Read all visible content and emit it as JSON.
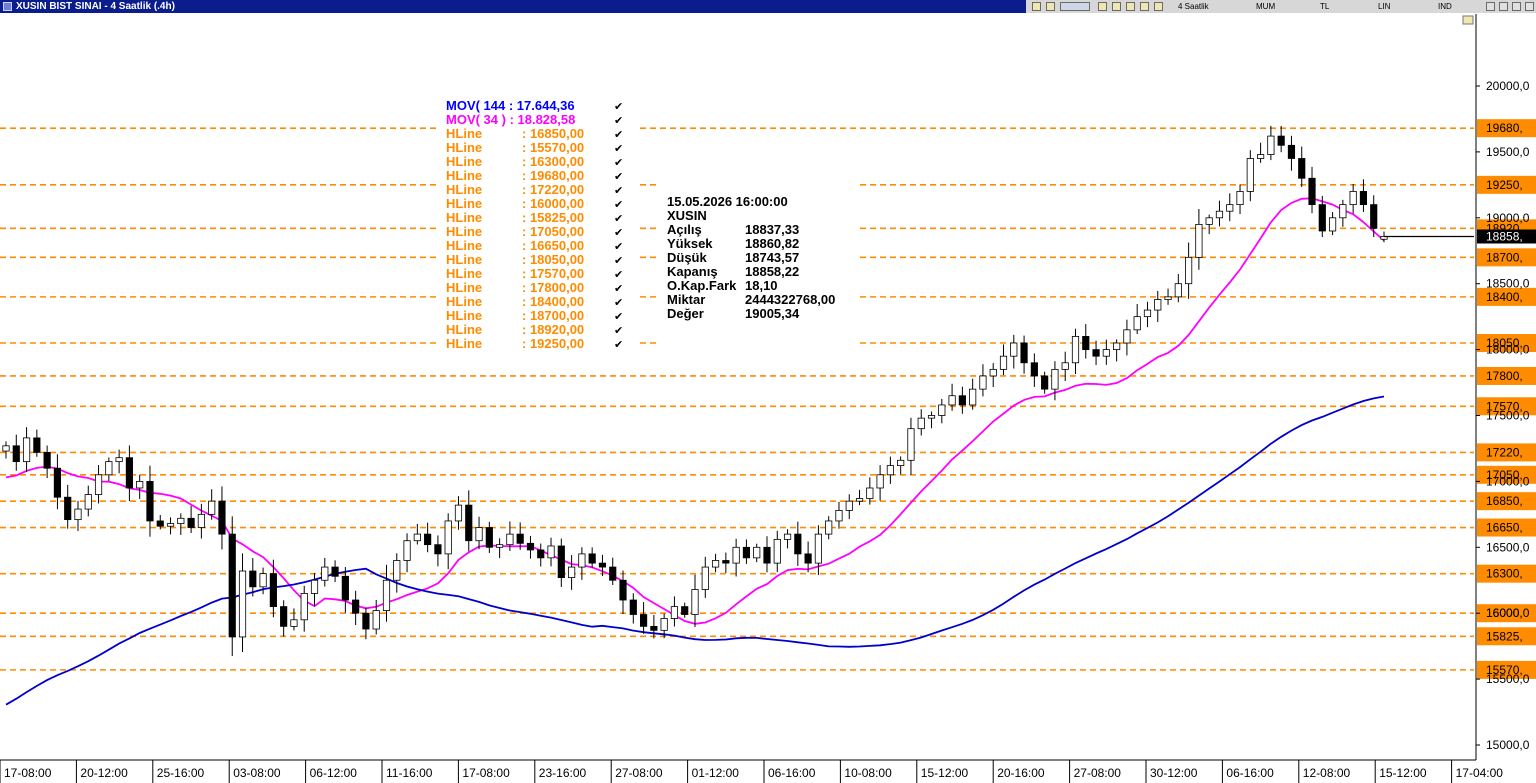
{
  "window": {
    "title": "XUSIN BIST SINAI - 4 Saatlik (.4h)"
  },
  "toolbar": {
    "period_label": "4 Saatlik",
    "mode_items": [
      "MUM",
      "TL",
      "LIN",
      "IND"
    ]
  },
  "legend": {
    "indicators": [
      {
        "name": "MOV( 144 : 17.644,36",
        "color": "#0000ff"
      },
      {
        "name": "MOV( 34 ) : 18.828,58",
        "color": "#ff00ff"
      }
    ],
    "hline_entries": [
      {
        "name": "HLine",
        "value": ": 16850,00"
      },
      {
        "name": "HLine",
        "value": ": 15570,00"
      },
      {
        "name": "HLine",
        "value": ": 16300,00"
      },
      {
        "name": "HLine",
        "value": ": 19680,00"
      },
      {
        "name": "HLine",
        "value": ": 17220,00"
      },
      {
        "name": "HLine",
        "value": ": 16000,00"
      },
      {
        "name": "HLine",
        "value": ": 15825,00"
      },
      {
        "name": "HLine",
        "value": ": 17050,00"
      },
      {
        "name": "HLine",
        "value": ": 16650,00"
      },
      {
        "name": "HLine",
        "value": ": 18050,00"
      },
      {
        "name": "HLine",
        "value": ": 17570,00"
      },
      {
        "name": "HLine",
        "value": ": 17800,00"
      },
      {
        "name": "HLine",
        "value": ": 18400,00"
      },
      {
        "name": "HLine",
        "value": ": 18700,00"
      },
      {
        "name": "HLine",
        "value": ": 18920,00"
      },
      {
        "name": "HLine",
        "value": ": 19250,00"
      }
    ],
    "check_mark": "✔"
  },
  "info_panel": {
    "datetime": "15.05.2026  16:00:00",
    "symbol": "XUSIN",
    "rows": [
      {
        "label": "Açılış",
        "value": "18837,33"
      },
      {
        "label": "Yüksek",
        "value": "18860,82"
      },
      {
        "label": "Düşük",
        "value": "18743,57"
      },
      {
        "label": "Kapanış",
        "value": "18858,22"
      },
      {
        "label": "O.Kap.Fark",
        "value": "18,10"
      },
      {
        "label": "Miktar",
        "value": "2444322768,00"
      },
      {
        "label": "Değer",
        "value": "19005,34"
      }
    ]
  },
  "chart_data": {
    "type": "candlestick",
    "title": "XUSIN BIST SINAI - 4 Saatlik (.4h)",
    "y_axis": {
      "range": [
        14850,
        20250
      ],
      "tick_labels": [
        "20000,0",
        "19500,0",
        "19000,0",
        "18500,0",
        "18000,0",
        "17500,0",
        "17000,0",
        "16500,0",
        "16000,0",
        "15500,0",
        "15000,0"
      ],
      "tick_values": [
        20000,
        19500,
        19000,
        18500,
        18000,
        17500,
        17000,
        16500,
        16000,
        15500,
        15000
      ]
    },
    "x_axis": {
      "tick_labels": [
        "17-08:00",
        "20-12:00",
        "25-16:00",
        "03-08:00",
        "06-12:00",
        "11-16:00",
        "17-08:00",
        "23-16:00",
        "27-08:00",
        "01-12:00",
        "06-16:00",
        "10-08:00",
        "15-12:00",
        "20-16:00",
        "27-08:00",
        "30-12:00",
        "06-16:00",
        "12-08:00",
        "15-12:00",
        "17-04:00"
      ]
    },
    "hlines": [
      {
        "value": 19680,
        "label": "19680,"
      },
      {
        "value": 19250,
        "label": "19250,"
      },
      {
        "value": 18920,
        "label": "18920,"
      },
      {
        "value": 18700,
        "label": "18700,"
      },
      {
        "value": 18400,
        "label": "18400,"
      },
      {
        "value": 18050,
        "label": "18050,"
      },
      {
        "value": 17800,
        "label": "17800,"
      },
      {
        "value": 17570,
        "label": "17570,"
      },
      {
        "value": 17220,
        "label": "17220,"
      },
      {
        "value": 17050,
        "label": "17050,"
      },
      {
        "value": 16850,
        "label": "16850,"
      },
      {
        "value": 16650,
        "label": "16650,"
      },
      {
        "value": 16300,
        "label": "16300,"
      },
      {
        "value": 16000,
        "label": "16000,"
      },
      {
        "value": 15825,
        "label": "15825,"
      },
      {
        "value": 15570,
        "label": "15570,"
      }
    ],
    "last_price": {
      "value": 18858.22,
      "label": "18858,"
    },
    "colors": {
      "hline": "#ff8c00",
      "mov144": "#0000cc",
      "mov34": "#ff00ff",
      "up_candle": "#ffffff",
      "down_candle": "#000000"
    },
    "closes": [
      17270,
      17150,
      17330,
      17220,
      17100,
      16880,
      16710,
      16790,
      16900,
      17050,
      17150,
      17180,
      16950,
      17000,
      16700,
      16660,
      16680,
      16720,
      16650,
      16750,
      16850,
      16600,
      15820,
      16320,
      16200,
      16300,
      16050,
      15900,
      15950,
      16150,
      16250,
      16350,
      16280,
      16100,
      16000,
      15880,
      16020,
      16250,
      16400,
      16550,
      16600,
      16520,
      16450,
      16700,
      16820,
      16550,
      16650,
      16500,
      16520,
      16600,
      16530,
      16480,
      16420,
      16510,
      16270,
      16350,
      16450,
      16380,
      16350,
      16250,
      16100,
      15990,
      15900,
      15870,
      15960,
      16050,
      15990,
      16180,
      16350,
      16400,
      16380,
      16500,
      16420,
      16500,
      16380,
      16560,
      16600,
      16450,
      16380,
      16600,
      16700,
      16780,
      16850,
      16870,
      16950,
      17050,
      17120,
      17160,
      17400,
      17480,
      17500,
      17580,
      17650,
      17580,
      17700,
      17800,
      17850,
      17950,
      18050,
      17900,
      17800,
      17700,
      17850,
      17900,
      18100,
      18000,
      17950,
      18000,
      18050,
      18150,
      18250,
      18300,
      18380,
      18400,
      18500,
      18700,
      18950,
      19000,
      19050,
      19100,
      19200,
      19450,
      19480,
      19620,
      19550,
      19450,
      19300,
      19100,
      18900,
      19000,
      19100,
      19200,
      19100,
      18920,
      18858.22
    ],
    "mov34_last": 18828.58,
    "mov144_last": 17644.36
  }
}
